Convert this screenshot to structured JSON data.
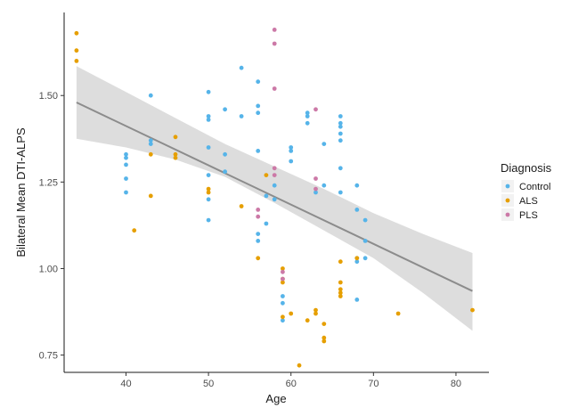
{
  "chart_data": {
    "type": "scatter",
    "title": "",
    "xlabel": "Age",
    "ylabel": "Bilateral Mean DTI-ALPS",
    "xlim": [
      32.5,
      84
    ],
    "ylim": [
      0.7,
      1.74
    ],
    "x_ticks": [
      40,
      50,
      60,
      70,
      80
    ],
    "y_ticks": [
      0.75,
      1.0,
      1.25,
      1.5
    ],
    "y_tick_labels": [
      "0.75",
      "1.00",
      "1.25",
      "1.50"
    ],
    "grid": false,
    "legend": {
      "title": "Diagnosis",
      "placement": "right",
      "entries": [
        "Control",
        "ALS",
        "PLS"
      ]
    },
    "colors": {
      "Control": "#56b4e9",
      "ALS": "#e69f00",
      "PLS": "#cc79a7",
      "fit_line": "#8c8c8c",
      "confidence_band": "#d9d9d9"
    },
    "series": [
      {
        "name": "Control",
        "points": [
          [
            40,
            1.33
          ],
          [
            40,
            1.32
          ],
          [
            40,
            1.3
          ],
          [
            40,
            1.26
          ],
          [
            40,
            1.22
          ],
          [
            43,
            1.5
          ],
          [
            43,
            1.37
          ],
          [
            43,
            1.36
          ],
          [
            50,
            1.51
          ],
          [
            50,
            1.44
          ],
          [
            50,
            1.43
          ],
          [
            50,
            1.35
          ],
          [
            50,
            1.27
          ],
          [
            50,
            1.2
          ],
          [
            50,
            1.14
          ],
          [
            52,
            1.46
          ],
          [
            52,
            1.33
          ],
          [
            52,
            1.28
          ],
          [
            54,
            1.58
          ],
          [
            54,
            1.44
          ],
          [
            56,
            1.54
          ],
          [
            56,
            1.47
          ],
          [
            56,
            1.45
          ],
          [
            56,
            1.34
          ],
          [
            56,
            1.1
          ],
          [
            56,
            1.08
          ],
          [
            57,
            1.21
          ],
          [
            57,
            1.13
          ],
          [
            58,
            1.24
          ],
          [
            58,
            1.2
          ],
          [
            59,
            0.92
          ],
          [
            59,
            0.9
          ],
          [
            59,
            0.85
          ],
          [
            60,
            1.35
          ],
          [
            60,
            1.34
          ],
          [
            60,
            1.31
          ],
          [
            62,
            1.45
          ],
          [
            62,
            1.44
          ],
          [
            62,
            1.42
          ],
          [
            63,
            1.22
          ],
          [
            64,
            1.36
          ],
          [
            64,
            1.24
          ],
          [
            66,
            1.44
          ],
          [
            66,
            1.42
          ],
          [
            66,
            1.41
          ],
          [
            66,
            1.39
          ],
          [
            66,
            1.37
          ],
          [
            66,
            1.29
          ],
          [
            66,
            1.22
          ],
          [
            68,
            1.24
          ],
          [
            68,
            1.17
          ],
          [
            68,
            1.03
          ],
          [
            68,
            1.02
          ],
          [
            68,
            0.91
          ],
          [
            69,
            1.14
          ],
          [
            69,
            1.08
          ],
          [
            69,
            1.03
          ]
        ]
      },
      {
        "name": "ALS",
        "points": [
          [
            34,
            1.68
          ],
          [
            34,
            1.63
          ],
          [
            34,
            1.6
          ],
          [
            41,
            1.11
          ],
          [
            43,
            1.33
          ],
          [
            43,
            1.21
          ],
          [
            46,
            1.38
          ],
          [
            46,
            1.33
          ],
          [
            46,
            1.32
          ],
          [
            50,
            1.23
          ],
          [
            50,
            1.22
          ],
          [
            54,
            1.18
          ],
          [
            56,
            1.03
          ],
          [
            57,
            1.27
          ],
          [
            59,
            1.0
          ],
          [
            59,
            0.97
          ],
          [
            59,
            0.96
          ],
          [
            59,
            0.86
          ],
          [
            60,
            0.87
          ],
          [
            61,
            0.72
          ],
          [
            62,
            0.85
          ],
          [
            63,
            0.88
          ],
          [
            63,
            0.87
          ],
          [
            64,
            0.84
          ],
          [
            64,
            0.8
          ],
          [
            64,
            0.79
          ],
          [
            66,
            1.02
          ],
          [
            66,
            0.96
          ],
          [
            66,
            0.94
          ],
          [
            66,
            0.93
          ],
          [
            66,
            0.92
          ],
          [
            68,
            1.03
          ],
          [
            73,
            0.87
          ],
          [
            82,
            0.88
          ]
        ]
      },
      {
        "name": "PLS",
        "points": [
          [
            56,
            1.17
          ],
          [
            56,
            1.15
          ],
          [
            58,
            1.69
          ],
          [
            58,
            1.65
          ],
          [
            58,
            1.52
          ],
          [
            58,
            1.29
          ],
          [
            58,
            1.27
          ],
          [
            59,
            0.99
          ],
          [
            59,
            0.97
          ],
          [
            63,
            1.46
          ],
          [
            63,
            1.26
          ],
          [
            63,
            1.23
          ]
        ]
      }
    ],
    "trend_line": {
      "x": [
        34,
        82
      ],
      "y": [
        1.48,
        0.935
      ]
    },
    "confidence_band": {
      "x": [
        34,
        40,
        46,
        52,
        58,
        64,
        70,
        76,
        82
      ],
      "lower": [
        1.375,
        1.35,
        1.315,
        1.265,
        1.19,
        1.11,
        1.03,
        0.93,
        0.82
      ],
      "upper": [
        1.585,
        1.51,
        1.435,
        1.36,
        1.295,
        1.23,
        1.16,
        1.1,
        1.045
      ]
    }
  }
}
